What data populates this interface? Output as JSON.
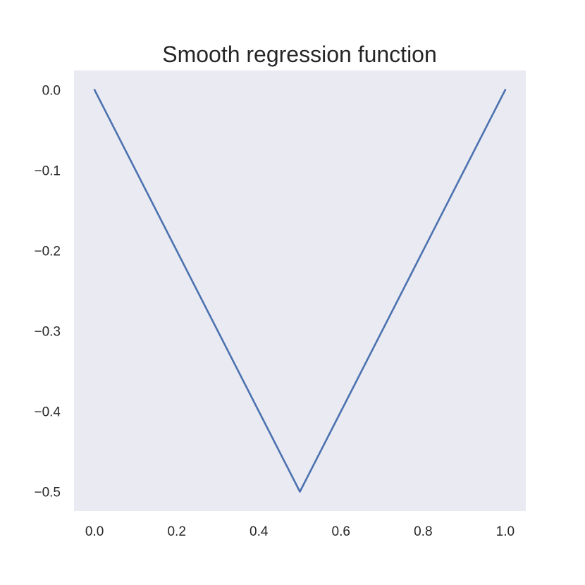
{
  "chart_data": {
    "type": "line",
    "title": "Smooth regression function",
    "xlabel": "",
    "ylabel": "",
    "xlim": [
      -0.05,
      1.05
    ],
    "ylim": [
      -0.524,
      0.024
    ],
    "xticks": [
      0.0,
      0.2,
      0.4,
      0.6,
      0.8,
      1.0
    ],
    "xtick_labels": [
      "0.0",
      "0.2",
      "0.4",
      "0.6",
      "0.8",
      "1.0"
    ],
    "yticks": [
      0.0,
      -0.1,
      -0.2,
      -0.3,
      -0.4,
      -0.5
    ],
    "ytick_labels": [
      "0.0",
      "−0.1",
      "−0.2",
      "−0.3",
      "−0.4",
      "−0.5"
    ],
    "grid": false,
    "legend": "none",
    "series": [
      {
        "color": "#4c72b0",
        "x": [
          0.0,
          0.5,
          1.0
        ],
        "y": [
          0.0,
          -0.5,
          0.0
        ]
      }
    ],
    "colors": {
      "plot_background": "#eaeaf2",
      "text": "#262626"
    }
  }
}
